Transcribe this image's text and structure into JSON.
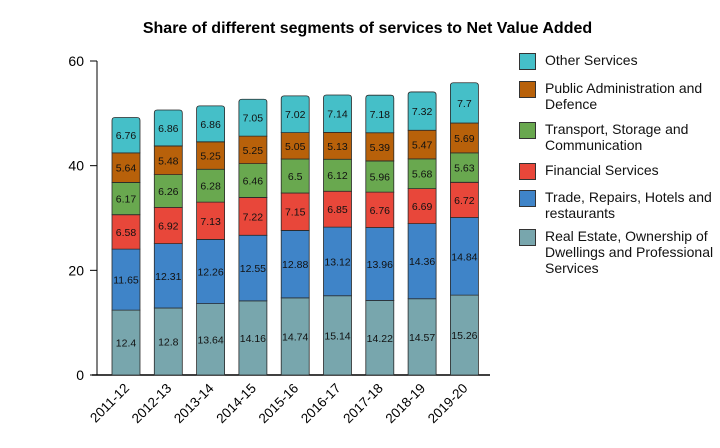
{
  "chart_data": {
    "type": "bar",
    "stacked": true,
    "title": "Share of different segments of services to Net Value Added",
    "xlabel": "",
    "ylabel": "",
    "ylim": [
      0,
      60
    ],
    "yticks": [
      0,
      20,
      40,
      60
    ],
    "grid": false,
    "legend_position": "right",
    "categories": [
      "2011-12",
      "2012-13",
      "2013-14",
      "2014-15",
      "2015-16",
      "2016-17",
      "2017-18",
      "2018-19",
      "2019-20"
    ],
    "series": [
      {
        "name": "Real Estate, Ownership of Dwellings and Professional Services",
        "color": "#78a6ad",
        "values": [
          12.4,
          12.8,
          13.64,
          14.16,
          14.74,
          15.14,
          14.22,
          14.57,
          15.26
        ]
      },
      {
        "name": "Trade, Repairs, Hotels and restaurants",
        "color": "#3f84c8",
        "values": [
          11.65,
          12.31,
          12.26,
          12.55,
          12.88,
          13.12,
          13.96,
          14.36,
          14.84
        ]
      },
      {
        "name": "Financial Services",
        "color": "#e8473a",
        "values": [
          6.58,
          6.92,
          7.13,
          7.22,
          7.15,
          6.85,
          6.76,
          6.69,
          6.72
        ]
      },
      {
        "name": "Transport, Storage and Communication",
        "color": "#69a84f",
        "values": [
          6.17,
          6.26,
          6.28,
          6.46,
          6.5,
          6.12,
          5.96,
          5.68,
          5.63
        ]
      },
      {
        "name": "Public Administration and Defence",
        "color": "#b8610a",
        "values": [
          5.64,
          5.48,
          5.25,
          5.25,
          5.05,
          5.13,
          5.39,
          5.47,
          5.69
        ]
      },
      {
        "name": "Other Services",
        "color": "#45bfc8",
        "values": [
          6.76,
          6.86,
          6.86,
          7.05,
          7.02,
          7.14,
          7.18,
          7.32,
          7.7
        ]
      }
    ]
  }
}
